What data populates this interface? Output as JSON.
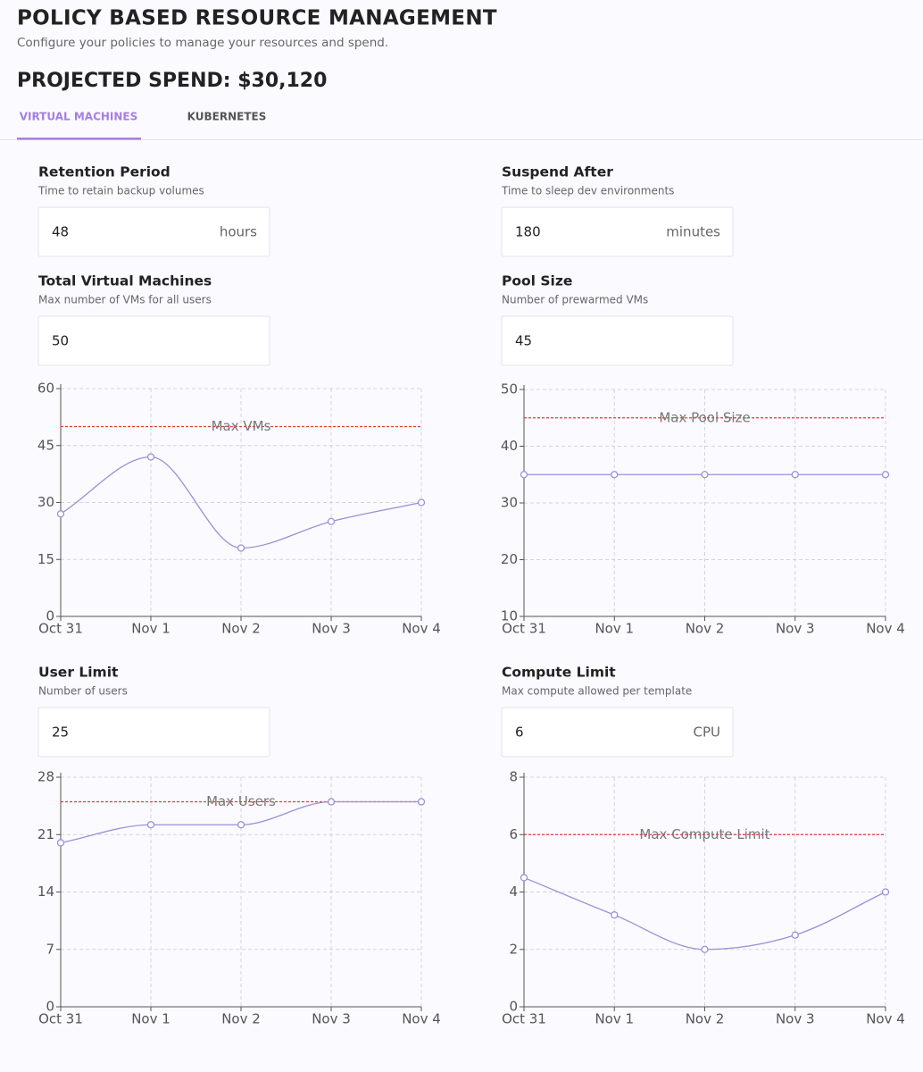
{
  "header": {
    "title": "POLICY BASED RESOURCE MANAGEMENT",
    "subtitle": "Configure your policies to manage your resources and spend.",
    "projected_spend": "PROJECTED SPEND: $30,120"
  },
  "tabs": [
    "VIRTUAL MACHINES",
    "KUBERNETES"
  ],
  "fields": [
    {
      "label": "Retention Period",
      "description": "Time to retain backup volumes",
      "value": 48,
      "unit": "hours"
    },
    {
      "label": "Suspend After",
      "description": "Time to sleep dev environments",
      "value": 180,
      "unit": "minutes"
    },
    {
      "label": "Total Virtual Machines",
      "description": "Max number of VMs for all users",
      "value": 50
    },
    {
      "label": "Pool Size",
      "description": "Number of prewarmed VMs",
      "value": 45
    },
    {
      "label": "User Limit",
      "description": "Number of users",
      "value": 25
    },
    {
      "label": "Compute Limit",
      "description": "Max compute allowed per template",
      "value": 6,
      "unit": "CPU"
    }
  ],
  "chart_data": [
    {
      "type": "line",
      "categories": [
        "Oct 31",
        "Nov 1",
        "Nov 2",
        "Nov 3",
        "Nov 4"
      ],
      "values": [
        27,
        42,
        18,
        25,
        30
      ],
      "color": "#9b8fd6",
      "ylim": [
        0,
        60
      ],
      "yticks": [
        0,
        15,
        30,
        45,
        60
      ],
      "grid": true,
      "threshold": {
        "value": 50,
        "label": "Max VMs",
        "color": "#e53935"
      }
    },
    {
      "type": "line",
      "categories": [
        "Oct 31",
        "Nov 1",
        "Nov 2",
        "Nov 3",
        "Nov 4"
      ],
      "values": [
        35,
        35,
        35,
        35,
        35
      ],
      "color": "#9b8fd6",
      "ylim": [
        10,
        50
      ],
      "yticks": [
        10,
        20,
        30,
        40,
        50
      ],
      "grid": true,
      "threshold": {
        "value": 45,
        "label": "Max Pool Size",
        "color": "#e53935"
      }
    },
    {
      "type": "line",
      "categories": [
        "Oct 31",
        "Nov 1",
        "Nov 2",
        "Nov 3",
        "Nov 4"
      ],
      "values": [
        20,
        22.2,
        22.2,
        25,
        25
      ],
      "color": "#9b8fd6",
      "ylim": [
        0,
        28
      ],
      "yticks": [
        0,
        7,
        14,
        21,
        28
      ],
      "grid": true,
      "threshold": {
        "value": 25,
        "label": "Max Users",
        "color": "#e53935"
      }
    },
    {
      "type": "line",
      "categories": [
        "Oct 31",
        "Nov 1",
        "Nov 2",
        "Nov 3",
        "Nov 4"
      ],
      "values": [
        4.5,
        3.2,
        2,
        2.5,
        4
      ],
      "color": "#9b8fd6",
      "ylim": [
        0,
        8
      ],
      "yticks": [
        0,
        2,
        4,
        6,
        8
      ],
      "grid": true,
      "threshold": {
        "value": 6,
        "label": "Max Compute Limit",
        "color": "#e53935"
      }
    }
  ]
}
